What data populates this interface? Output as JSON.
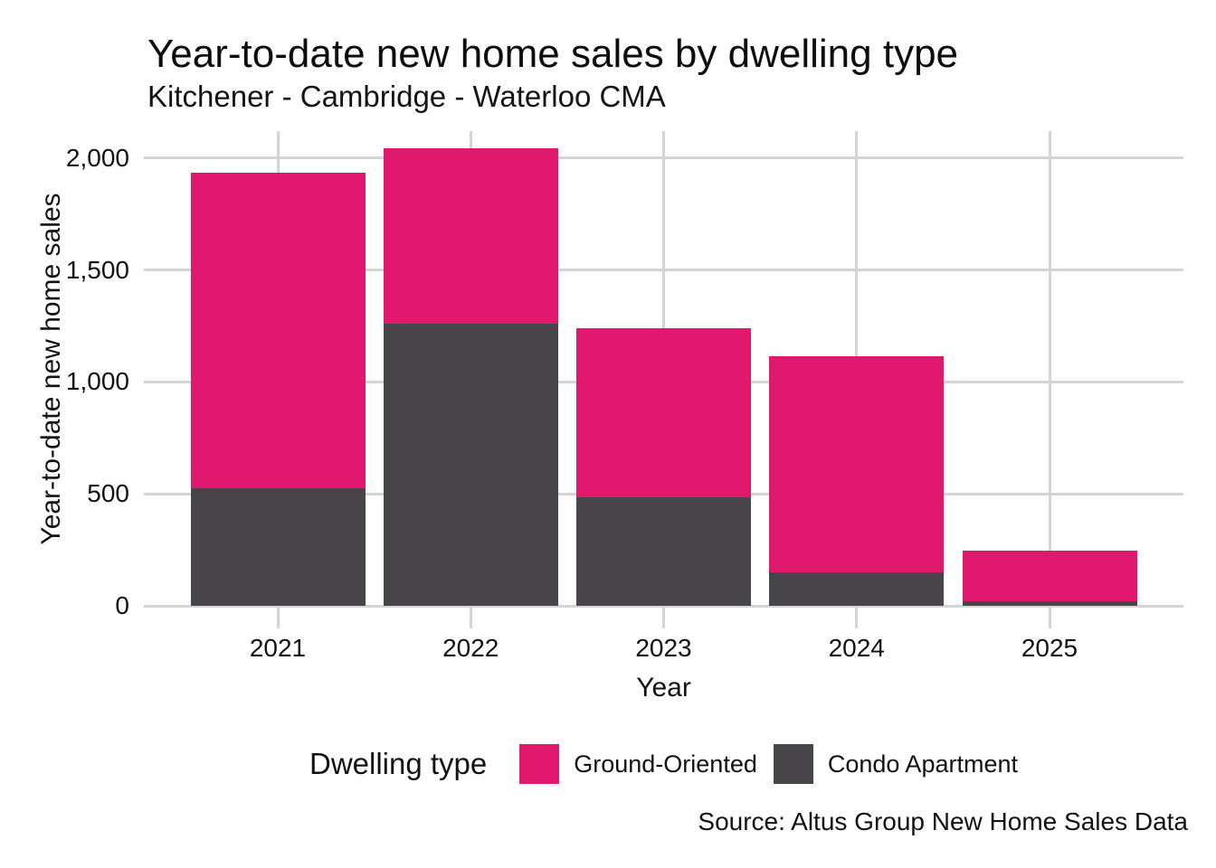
{
  "chart_data": {
    "type": "bar",
    "stacked": true,
    "title": "Year-to-date new home sales by dwelling type",
    "subtitle": "Kitchener - Cambridge - Waterloo CMA",
    "xlabel": "Year",
    "ylabel": "Year-to-date new home sales",
    "categories": [
      "2021",
      "2022",
      "2023",
      "2024",
      "2025"
    ],
    "series": [
      {
        "name": "Condo Apartment",
        "color": "#48454A",
        "values": [
          525,
          1260,
          485,
          150,
          20
        ]
      },
      {
        "name": "Ground-Oriented",
        "color": "#E1196E",
        "values": [
          1410,
          785,
          755,
          965,
          225
        ]
      }
    ],
    "ylim": [
      0,
      2121
    ],
    "yticks": [
      {
        "value": 0,
        "label": "0"
      },
      {
        "value": 500,
        "label": "500"
      },
      {
        "value": 1000,
        "label": "1,000"
      },
      {
        "value": 1500,
        "label": "1,500"
      },
      {
        "value": 2000,
        "label": "2,000"
      }
    ],
    "grid": true,
    "legend": {
      "title": "Dwelling type",
      "position": "bottom",
      "order": [
        "Ground-Oriented",
        "Condo Apartment"
      ]
    },
    "source_note": "Source: Altus Group New Home Sales Data",
    "colors": {
      "ground_oriented": "#E1196E",
      "condo_apartment": "#48454A",
      "gridline": "#D4D4D4",
      "text": "#121212"
    }
  }
}
